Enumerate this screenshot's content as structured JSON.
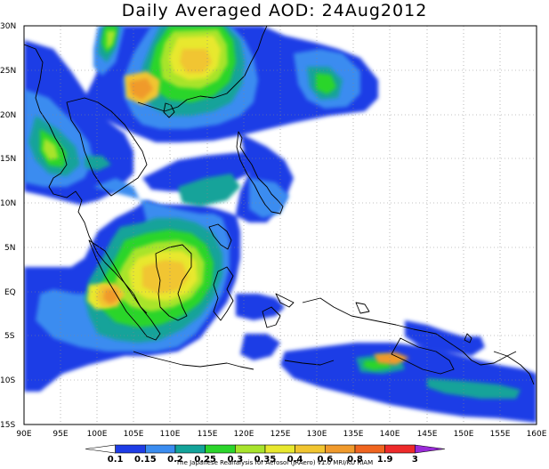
{
  "title": "Daily Averaged AOD: 24Aug2012",
  "credit": "The Japanese Reanalysis for Aerosol (JRAero) v1.0  MRI/KU RIAM",
  "axes": {
    "lat_ticks": [
      "30N",
      "25N",
      "20N",
      "15N",
      "10N",
      "5N",
      "EQ",
      "5S",
      "10S",
      "15S"
    ],
    "lon_ticks": [
      "90E",
      "95E",
      "100E",
      "105E",
      "110E",
      "115E",
      "120E",
      "125E",
      "130E",
      "135E",
      "140E",
      "145E",
      "150E",
      "155E",
      "160E"
    ]
  },
  "chart_data": {
    "type": "heatmap",
    "title": "Daily Averaged AOD: 24Aug2012",
    "x_range": [
      90,
      160
    ],
    "y_range": [
      -15,
      30
    ],
    "grid": true,
    "colorbar": {
      "levels": [
        "0.1",
        "0.15",
        "0.2",
        "0.25",
        "0.3",
        "0.35",
        "0.4",
        "0.6",
        "0.8",
        "1.9",
        "3"
      ],
      "colors": [
        "#ffffff",
        "#1e3ce6",
        "#3a8cf0",
        "#13a39a",
        "#2bd52b",
        "#a8e42c",
        "#e8e82e",
        "#f1c530",
        "#f09a2c",
        "#f0651f",
        "#ee2a2a",
        "#9a2bd8"
      ]
    }
  }
}
